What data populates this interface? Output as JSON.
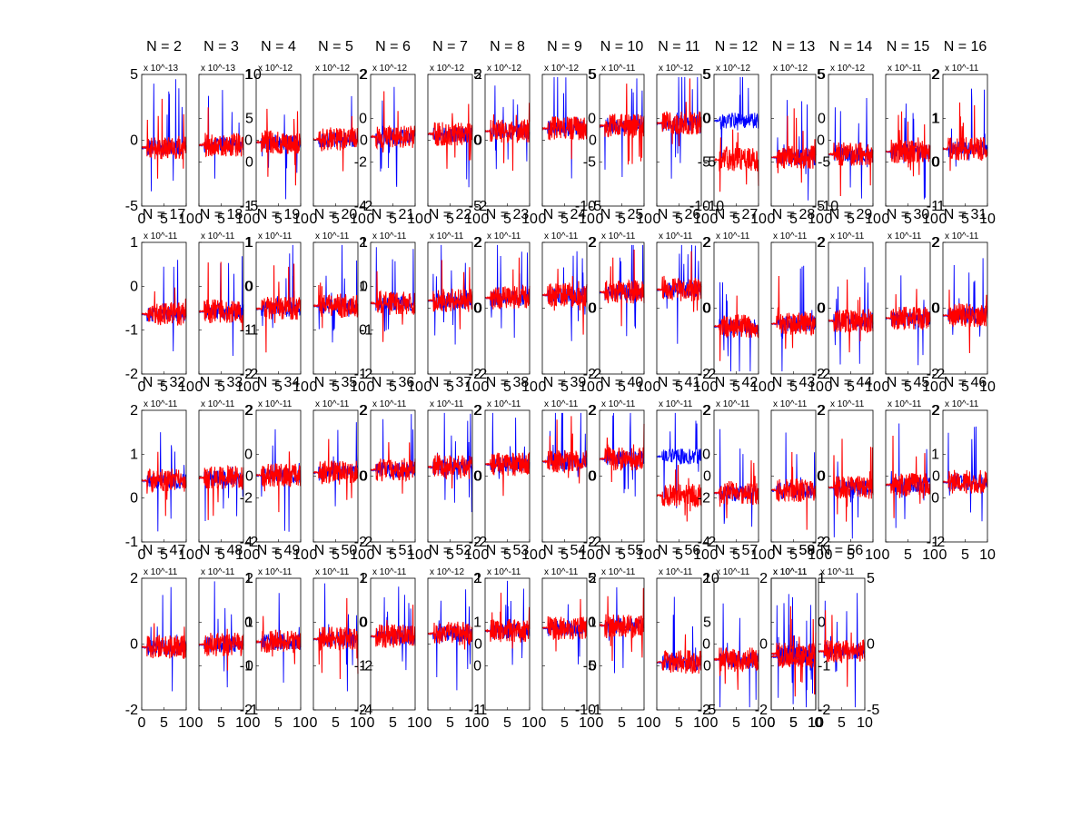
{
  "figure": {
    "background": "#ffffff",
    "series_colors": {
      "blue": "#0000ff",
      "red": "#ff0000"
    }
  },
  "chart_data": {
    "type": "line",
    "series_names": [],
    "xlim": [
      0,
      10
    ],
    "panels": [
      {
        "label": "N = 2",
        "exp": "x 10^-13",
        "ylim": [
          -5,
          5
        ],
        "yticks": [
          -5,
          0,
          5
        ]
      },
      {
        "label": "N = 3",
        "exp": "x 10^-13",
        "ylim": [
          -5,
          10
        ],
        "yticks": [
          -5,
          0,
          5,
          10
        ]
      },
      {
        "label": "N = 4",
        "exp": "x 10^-12",
        "ylim": [
          -1,
          1
        ],
        "yticks": [
          -1,
          0,
          1
        ]
      },
      {
        "label": "N = 5",
        "exp": "x 10^-12",
        "ylim": [
          -2,
          2
        ],
        "yticks": [
          -2,
          0,
          2
        ]
      },
      {
        "label": "N = 6",
        "exp": "x 10^-12",
        "ylim": [
          -4,
          2
        ],
        "yticks": [
          -4,
          -2,
          0,
          2
        ]
      },
      {
        "label": "N = 7",
        "exp": "x 10^-12",
        "ylim": [
          -2,
          2
        ],
        "yticks": [
          -2,
          0,
          2
        ]
      },
      {
        "label": "N = 8",
        "exp": "x 10^-12",
        "ylim": [
          -5,
          5
        ],
        "yticks": [
          -5,
          0,
          5
        ]
      },
      {
        "label": "N = 9",
        "exp": "x 10^-12",
        "ylim": [
          -5,
          5
        ],
        "yticks": [
          -5,
          0,
          5
        ]
      },
      {
        "label": "N = 10",
        "exp": "x 10^-11",
        "ylim": [
          -10,
          5
        ],
        "yticks": [
          -10,
          -5,
          0,
          5
        ]
      },
      {
        "label": "N = 11",
        "exp": "x 10^-12",
        "ylim": [
          -10,
          5
        ],
        "yticks": [
          -10,
          -5,
          0,
          5
        ]
      },
      {
        "label": "N = 12",
        "exp": "x 10^-12",
        "ylim": [
          -10,
          5
        ],
        "yticks": [
          -10,
          -5,
          0,
          5
        ]
      },
      {
        "label": "N = 13",
        "exp": "x 10^-12",
        "ylim": [
          -10,
          5
        ],
        "yticks": [
          -10,
          -5,
          0,
          5
        ]
      },
      {
        "label": "N = 14",
        "exp": "x 10^-12",
        "ylim": [
          -5,
          5
        ],
        "yticks": [
          -5,
          0,
          5
        ]
      },
      {
        "label": "N = 15",
        "exp": "x 10^-11",
        "ylim": [
          -1,
          2
        ],
        "yticks": [
          -1,
          0,
          1,
          2
        ]
      },
      {
        "label": "N = 16",
        "exp": "x 10^-11",
        "ylim": [
          -1,
          2
        ],
        "yticks": [
          -1,
          0,
          1,
          2
        ]
      },
      {
        "label": "N = 17",
        "exp": "x 10^-11",
        "ylim": [
          -2,
          1
        ],
        "yticks": [
          -2,
          -1,
          0,
          1
        ]
      },
      {
        "label": "N = 18",
        "exp": "x 10^-11",
        "ylim": [
          -2,
          1
        ],
        "yticks": [
          -2,
          -1,
          0,
          1
        ]
      },
      {
        "label": "N = 19",
        "exp": "x 10^-11",
        "ylim": [
          -2,
          1
        ],
        "yticks": [
          -2,
          -1,
          0,
          1
        ]
      },
      {
        "label": "N = 20",
        "exp": "x 10^-11",
        "ylim": [
          -2,
          1
        ],
        "yticks": [
          -2,
          -1,
          0,
          1
        ]
      },
      {
        "label": "N = 21",
        "exp": "x 10^-11",
        "ylim": [
          -1,
          2
        ],
        "yticks": [
          -1,
          0,
          1,
          2
        ]
      },
      {
        "label": "N = 22",
        "exp": "x 10^-11",
        "ylim": [
          -2,
          2
        ],
        "yticks": [
          -2,
          0,
          2
        ]
      },
      {
        "label": "N = 23",
        "exp": "x 10^-11",
        "ylim": [
          -2,
          2
        ],
        "yticks": [
          -2,
          0,
          2
        ]
      },
      {
        "label": "N = 24",
        "exp": "x 10^-11",
        "ylim": [
          -2,
          2
        ],
        "yticks": [
          -2,
          0,
          2
        ]
      },
      {
        "label": "N = 25",
        "exp": "x 10^-11",
        "ylim": [
          -2,
          2
        ],
        "yticks": [
          -2,
          0,
          2
        ]
      },
      {
        "label": "N = 26",
        "exp": "x 10^-11",
        "ylim": [
          -2,
          2
        ],
        "yticks": [
          -2,
          0,
          2
        ]
      },
      {
        "label": "N = 27",
        "exp": "x 10^-11",
        "ylim": [
          -2,
          2
        ],
        "yticks": [
          -2,
          0,
          2
        ]
      },
      {
        "label": "N = 28",
        "exp": "x 10^-11",
        "ylim": [
          -2,
          2
        ],
        "yticks": [
          -2,
          0,
          2
        ]
      },
      {
        "label": "N = 29",
        "exp": "x 10^-11",
        "ylim": [
          -2,
          2
        ],
        "yticks": [
          -2,
          0,
          2
        ]
      },
      {
        "label": "N = 30",
        "exp": "x 10^-11",
        "ylim": [
          -2,
          2
        ],
        "yticks": [
          -2,
          0,
          2
        ]
      },
      {
        "label": "N = 31",
        "exp": "x 10^-11",
        "ylim": [
          -2,
          2
        ],
        "yticks": [
          -2,
          0,
          2
        ]
      },
      {
        "label": "N = 32",
        "exp": "x 10^-11",
        "ylim": [
          -1,
          2
        ],
        "yticks": [
          -1,
          0,
          1,
          2
        ]
      },
      {
        "label": "N = 33",
        "exp": "x 10^-11",
        "ylim": [
          -2,
          2
        ],
        "yticks": [
          -2,
          0,
          2
        ]
      },
      {
        "label": "N = 34",
        "exp": "x 10^-11",
        "ylim": [
          -4,
          2
        ],
        "yticks": [
          -4,
          -2,
          0,
          2
        ]
      },
      {
        "label": "N = 35",
        "exp": "x 10^-11",
        "ylim": [
          -2,
          2
        ],
        "yticks": [
          -2,
          0,
          2
        ]
      },
      {
        "label": "N = 36",
        "exp": "x 10^-11",
        "ylim": [
          -2,
          2
        ],
        "yticks": [
          -2,
          0,
          2
        ]
      },
      {
        "label": "N = 37",
        "exp": "x 10^-11",
        "ylim": [
          -2,
          2
        ],
        "yticks": [
          -2,
          0,
          2
        ]
      },
      {
        "label": "N = 38",
        "exp": "x 10^-11",
        "ylim": [
          -2,
          2
        ],
        "yticks": [
          -2,
          0,
          2
        ]
      },
      {
        "label": "N = 39",
        "exp": "x 10^-11",
        "ylim": [
          -2,
          2
        ],
        "yticks": [
          -2,
          0,
          2
        ]
      },
      {
        "label": "N = 40",
        "exp": "x 10^-11",
        "ylim": [
          -2,
          2
        ],
        "yticks": [
          -2,
          0,
          2
        ]
      },
      {
        "label": "N = 41",
        "exp": "x 10^-11",
        "ylim": [
          -2,
          2
        ],
        "yticks": [
          -2,
          0,
          2
        ]
      },
      {
        "label": "N = 42",
        "exp": "x 10^-11",
        "ylim": [
          -4,
          2
        ],
        "yticks": [
          -4,
          -2,
          0,
          2
        ]
      },
      {
        "label": "N = 43",
        "exp": "x 10^-11",
        "ylim": [
          -2,
          2
        ],
        "yticks": [
          -2,
          0,
          2
        ]
      },
      {
        "label": "N = 44",
        "exp": "x 10^-11",
        "ylim": [
          -2,
          2
        ],
        "yticks": [
          -2,
          0,
          2
        ]
      },
      {
        "label": "N = 45",
        "exp": "x 10^-11",
        "ylim": [
          -2,
          2
        ],
        "yticks": [
          -2,
          0,
          2
        ]
      },
      {
        "label": "N = 46",
        "exp": "x 10^-11",
        "ylim": [
          -1,
          2
        ],
        "yticks": [
          -1,
          0,
          1,
          2
        ]
      },
      {
        "label": "N = 47",
        "exp": "x 10^-11",
        "ylim": [
          -2,
          2
        ],
        "yticks": [
          -2,
          0,
          2
        ]
      },
      {
        "label": "N = 48",
        "exp": "x 10^-11",
        "ylim": [
          -1,
          2
        ],
        "yticks": [
          -1,
          0,
          1,
          2
        ]
      },
      {
        "label": "N = 49",
        "exp": "x 10^-11",
        "ylim": [
          -2,
          1
        ],
        "yticks": [
          -2,
          -1,
          0,
          1
        ]
      },
      {
        "label": "N = 50",
        "exp": "x 10^-11",
        "ylim": [
          -4,
          2
        ],
        "yticks": [
          -4,
          -2,
          0,
          2
        ]
      },
      {
        "label": "N = 51",
        "exp": "x 10^-11",
        "ylim": [
          -2,
          1
        ],
        "yticks": [
          -2,
          -1,
          0,
          1
        ]
      },
      {
        "label": "N = 52",
        "exp": "x 10^-12",
        "ylim": [
          -1,
          1
        ],
        "yticks": [
          -1,
          0,
          1
        ]
      },
      {
        "label": "N = 53",
        "exp": "x 10^-11",
        "ylim": [
          -1,
          2
        ],
        "yticks": [
          -1,
          0,
          1,
          2
        ]
      },
      {
        "label": "N = 54",
        "exp": "x 10^-11",
        "ylim": [
          -1,
          2
        ],
        "yticks": [
          -1,
          0,
          1,
          2
        ]
      },
      {
        "label": "N = 55",
        "exp": "x 10^-11",
        "ylim": [
          -10,
          5
        ],
        "yticks": [
          -10,
          -5,
          0,
          5
        ]
      },
      {
        "label": "N = 56",
        "exp": "x 10^-11",
        "ylim": [
          -5,
          10
        ],
        "yticks": [
          -5,
          0,
          5,
          10
        ]
      },
      {
        "label": "N = 57",
        "exp": "x 10^-11",
        "ylim": [
          -2,
          2
        ],
        "yticks": [
          -2,
          0,
          2
        ]
      },
      {
        "label": "N = 58",
        "exp": "x 10^-11",
        "ylim": [
          -2,
          1
        ],
        "yticks": [
          -2,
          -1,
          0,
          1
        ]
      },
      {
        "label": "N = 59",
        "exp": "x 10^-11",
        "ylim": [
          -2,
          2
        ],
        "yticks": [
          -2,
          0,
          2
        ]
      },
      {
        "label": "N = 56",
        "exp": "x 10^-11",
        "ylim": [
          -5,
          5
        ],
        "yticks": [
          -5,
          0,
          5
        ]
      }
    ]
  }
}
